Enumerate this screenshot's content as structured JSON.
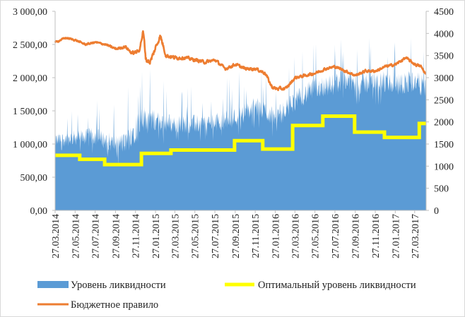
{
  "chart_data": {
    "type": "area",
    "title": "",
    "xlabel": "",
    "ylabel": "",
    "ylim_left": [
      0,
      3000
    ],
    "ylim_right": [
      0,
      4500
    ],
    "grid": false,
    "legend_position": "bottom",
    "y_left_ticks": [
      "0,00",
      "500,00",
      "1 000,00",
      "1 500,00",
      "2 000,00",
      "2 500,00",
      "3 000,00"
    ],
    "y_left_tick_values": [
      0,
      500,
      1000,
      1500,
      2000,
      2500,
      3000
    ],
    "y_right_ticks": [
      "0",
      "500",
      "1000",
      "1500",
      "2000",
      "2500",
      "3000",
      "3500",
      "4000",
      "4500"
    ],
    "y_right_tick_values": [
      0,
      500,
      1000,
      1500,
      2000,
      2500,
      3000,
      3500,
      4000,
      4500
    ],
    "x_ticks": [
      "27.03.2014",
      "27.05.2014",
      "27.07.2014",
      "27.09.2014",
      "27.11.2014",
      "27.01.2015",
      "27.03.2015",
      "27.05.2015",
      "27.07.2015",
      "27.09.2015",
      "27.11.2015",
      "27.01.2016",
      "27.03.2016",
      "27.05.2016",
      "27.07.2016",
      "27.09.2016",
      "27.11.2016",
      "27.01.2017",
      "27.03.2017"
    ],
    "x_start": "27.03.2014",
    "x_end": "01.05.2017",
    "series": [
      {
        "name": "Уровень ликвидности",
        "axis": "left",
        "style": "area",
        "color": "#5b9bd5",
        "x": [
          "27.03.2014",
          "27.05.2014",
          "27.07.2014",
          "27.09.2014",
          "27.10.2014",
          "27.11.2014",
          "27.12.2014",
          "27.01.2015",
          "27.03.2015",
          "27.05.2015",
          "27.07.2015",
          "27.09.2015",
          "27.11.2015",
          "27.12.2015",
          "27.01.2016",
          "27.03.2016",
          "27.05.2016",
          "27.07.2016",
          "27.08.2016",
          "27.09.2016",
          "27.11.2016",
          "27.01.2017",
          "27.03.2017",
          "01.05.2017"
        ],
        "values": [
          1050,
          1100,
          1120,
          1000,
          1020,
          1250,
          1400,
          1350,
          1300,
          1300,
          1330,
          1400,
          1550,
          1500,
          1400,
          1650,
          1850,
          1900,
          2000,
          1900,
          1950,
          1900,
          1950,
          1850
        ],
        "volatility": [
          200,
          220,
          240,
          260,
          300,
          420,
          360,
          300,
          260,
          260,
          260,
          280,
          300,
          300,
          260,
          280,
          300,
          300,
          300,
          320,
          320,
          320,
          320,
          300
        ]
      },
      {
        "name": "Оптимальный уровень ликвидности",
        "axis": "left",
        "style": "step",
        "color": "#ffff00",
        "steps": [
          {
            "from": "27.03.2014",
            "to": "10.06.2014",
            "value": 830
          },
          {
            "from": "10.06.2014",
            "to": "25.08.2014",
            "value": 770
          },
          {
            "from": "25.08.2014",
            "to": "15.12.2014",
            "value": 690
          },
          {
            "from": "15.12.2014",
            "to": "15.03.2015",
            "value": 860
          },
          {
            "from": "15.03.2015",
            "to": "25.09.2015",
            "value": 910
          },
          {
            "from": "25.09.2015",
            "to": "20.12.2015",
            "value": 1050
          },
          {
            "from": "20.12.2015",
            "to": "20.03.2016",
            "value": 925
          },
          {
            "from": "20.03.2016",
            "to": "20.06.2016",
            "value": 1280
          },
          {
            "from": "20.06.2016",
            "to": "25.09.2016",
            "value": 1420
          },
          {
            "from": "25.09.2016",
            "to": "25.12.2016",
            "value": 1180
          },
          {
            "from": "25.12.2016",
            "to": "10.04.2017",
            "value": 1100
          },
          {
            "from": "10.04.2017",
            "to": "01.05.2017",
            "value": 1310
          }
        ]
      },
      {
        "name": "Бюджетное правило",
        "axis": "right",
        "style": "line",
        "color": "#ed7d31",
        "x": [
          "27.03.2014",
          "27.04.2014",
          "27.05.2014",
          "27.06.2014",
          "27.07.2014",
          "27.08.2014",
          "27.09.2014",
          "27.10.2014",
          "15.11.2014",
          "07.12.2014",
          "20.12.2014",
          "28.12.2014",
          "10.01.2015",
          "25.01.2015",
          "10.02.2015",
          "27.02.2015",
          "27.03.2015",
          "27.04.2015",
          "27.05.2015",
          "27.06.2015",
          "27.07.2015",
          "27.08.2015",
          "27.09.2015",
          "27.10.2015",
          "27.11.2015",
          "27.12.2015",
          "15.01.2016",
          "27.01.2016",
          "27.02.2016",
          "27.03.2016",
          "27.04.2016",
          "27.05.2016",
          "27.06.2016",
          "27.07.2016",
          "27.08.2016",
          "27.09.2016",
          "27.10.2016",
          "27.11.2016",
          "27.12.2016",
          "27.01.2017",
          "27.02.2017",
          "27.03.2017",
          "15.04.2017",
          "01.05.2017"
        ],
        "values": [
          3800,
          3900,
          3850,
          3750,
          3800,
          3750,
          3650,
          3700,
          3550,
          3600,
          4050,
          3400,
          3350,
          3650,
          3950,
          3500,
          3450,
          3450,
          3400,
          3350,
          3400,
          3200,
          3300,
          3200,
          3200,
          3100,
          2800,
          2750,
          2750,
          3000,
          3050,
          3100,
          3200,
          3250,
          3150,
          3050,
          3150,
          3150,
          3250,
          3300,
          3450,
          3300,
          3250,
          3050
        ],
        "volatility": [
          60,
          60,
          60,
          60,
          60,
          70,
          80,
          90,
          110,
          120,
          160,
          160,
          170,
          170,
          160,
          130,
          120,
          110,
          110,
          110,
          100,
          100,
          100,
          100,
          100,
          110,
          120,
          120,
          110,
          100,
          90,
          90,
          90,
          90,
          90,
          90,
          90,
          90,
          90,
          90,
          90,
          90,
          90,
          90
        ]
      }
    ]
  },
  "legend": {
    "liquidity": "Уровень ликвидности",
    "optimal": "Оптимальный уровень ликвидности",
    "budget": "Бюджетное правило"
  }
}
